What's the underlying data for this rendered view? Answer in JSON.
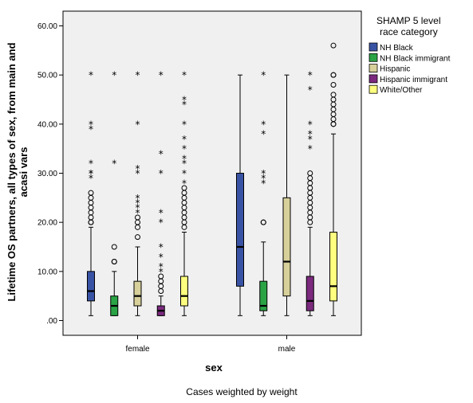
{
  "chart_data": {
    "type": "boxplot",
    "xlabel": "sex",
    "ylabel_lines": [
      "Lifetime OS partners, all types of sex, from main and",
      "acasi vars"
    ],
    "footnote": "Cases weighted by weight",
    "ylim": [
      -3,
      63
    ],
    "yticks": [
      0,
      10,
      20,
      30,
      40,
      50,
      60
    ],
    "ytick_labels": [
      ".00",
      "10.00",
      "20.00",
      "30.00",
      "40.00",
      "50.00",
      "60.00"
    ],
    "categories": [
      "female",
      "male"
    ],
    "legend": {
      "title_lines": [
        "SHAMP 5 level",
        "race category"
      ],
      "placement": "right"
    },
    "series": [
      {
        "name": "NH Black",
        "color": "#3953a4",
        "boxes": [
          {
            "q1": 4,
            "median": 6,
            "q3": 10,
            "whisker_low": 1,
            "whisker_high": 19,
            "outliers": [
              20,
              20,
              21,
              22,
              23,
              24,
              25,
              26
            ],
            "extremes": [
              29,
              30,
              30,
              32,
              39,
              40,
              50
            ]
          },
          {
            "q1": 7,
            "median": 15,
            "q3": 30,
            "whisker_low": 1,
            "whisker_high": 50,
            "outliers": [],
            "extremes": []
          }
        ]
      },
      {
        "name": "NH Black immigrant",
        "color": "#2aa345",
        "boxes": [
          {
            "q1": 1,
            "median": 3,
            "q3": 5,
            "whisker_low": 1,
            "whisker_high": 10,
            "outliers": [
              12,
              12,
              15
            ],
            "extremes": [
              32,
              50
            ]
          },
          {
            "q1": 2,
            "median": 3,
            "q3": 8,
            "whisker_low": 1,
            "whisker_high": 16,
            "outliers": [
              20,
              20
            ],
            "extremes": [
              28,
              29,
              30,
              38,
              40,
              50
            ]
          }
        ]
      },
      {
        "name": "Hispanic",
        "color": "#d7d09a",
        "boxes": [
          {
            "q1": 3,
            "median": 5,
            "q3": 8,
            "whisker_low": 1,
            "whisker_high": 15,
            "outliers": [
              17,
              19,
              20,
              21
            ],
            "extremes": [
              22,
              23,
              24,
              25,
              30,
              31,
              40,
              50
            ]
          },
          {
            "q1": 5,
            "median": 12,
            "q3": 25,
            "whisker_low": 1,
            "whisker_high": 50,
            "outliers": [],
            "extremes": []
          }
        ]
      },
      {
        "name": "Hispanic immigrant",
        "color": "#7b2a7e",
        "boxes": [
          {
            "q1": 1,
            "median": 2,
            "q3": 3,
            "whisker_low": 1,
            "whisker_high": 5,
            "outliers": [
              6,
              7,
              8,
              9
            ],
            "extremes": [
              10,
              11,
              13,
              15,
              20,
              22,
              30,
              34,
              50
            ]
          },
          {
            "q1": 2,
            "median": 4,
            "q3": 9,
            "whisker_low": 1,
            "whisker_high": 19,
            "outliers": [
              20,
              21,
              22,
              23,
              24,
              25,
              26,
              27,
              28,
              29,
              30
            ],
            "extremes": [
              35,
              37,
              38,
              40,
              47,
              50
            ]
          }
        ]
      },
      {
        "name": "White/Other",
        "color": "#ffff7f",
        "boxes": [
          {
            "q1": 3,
            "median": 5,
            "q3": 9,
            "whisker_low": 1,
            "whisker_high": 18,
            "outliers": [
              19,
              20,
              21,
              22,
              23,
              24,
              25,
              26,
              27
            ],
            "extremes": [
              28,
              30,
              32,
              33,
              35,
              37,
              40,
              44,
              45,
              50
            ]
          },
          {
            "q1": 4,
            "median": 7,
            "q3": 18,
            "whisker_low": 1,
            "whisker_high": 38,
            "outliers": [
              40,
              40,
              41,
              42,
              43,
              44,
              45,
              46,
              48,
              50,
              50,
              56
            ],
            "extremes": []
          }
        ]
      }
    ]
  }
}
